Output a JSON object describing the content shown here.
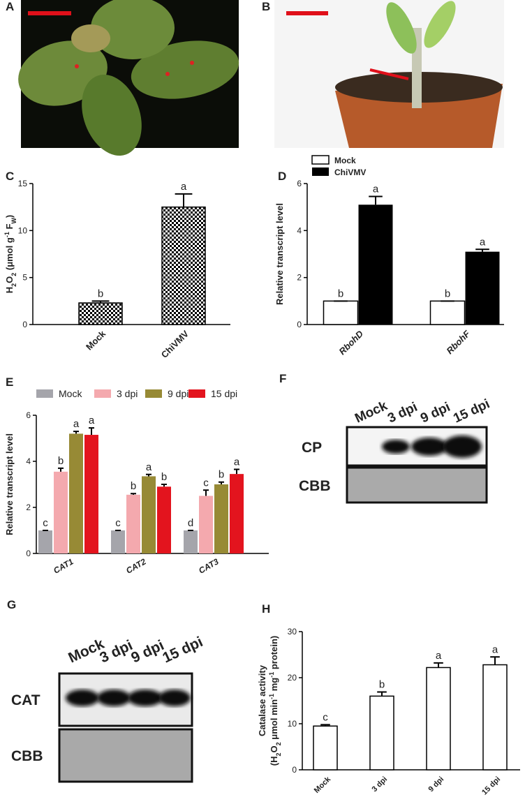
{
  "chart_data": [
    {
      "type": "bar",
      "panel": "C",
      "ylabel": [
        [
          [
            "H",
            ""
          ],
          [
            "2",
            "sub"
          ],
          [
            "O",
            ""
          ],
          [
            "2",
            "sub"
          ],
          [
            " (μmol g",
            ""
          ],
          [
            "-1",
            "sup"
          ],
          [
            " F",
            ""
          ],
          [
            "W",
            "sub"
          ],
          [
            ")",
            ""
          ]
        ]
      ],
      "categories": [
        "Mock",
        "ChiVMV"
      ],
      "values": [
        2.3,
        12.5
      ],
      "errors": [
        0.2,
        1.4
      ],
      "annotations": [
        "b",
        "a"
      ],
      "color": "#000000",
      "pattern": "checkered",
      "ylim": [
        0,
        15
      ],
      "yticks": [
        0,
        5,
        10,
        15
      ]
    },
    {
      "type": "bar",
      "panel": "D",
      "ylabel": [
        [
          [
            "Relative transcript level",
            ""
          ]
        ]
      ],
      "category_italic": true,
      "categories": [
        "RbohD",
        "RbohF"
      ],
      "series": [
        {
          "name": "Mock",
          "color": "#ffffff",
          "values": [
            1,
            1
          ],
          "errors": [
            0,
            0
          ],
          "annotations": [
            "b",
            "b"
          ]
        },
        {
          "name": "ChiVMV",
          "color": "#000000",
          "values": [
            5.1,
            3.1
          ],
          "errors": [
            0.35,
            0.1
          ],
          "annotations": [
            "a",
            "a"
          ]
        }
      ],
      "ylim": [
        0,
        6
      ],
      "yticks": [
        0,
        2,
        4,
        6
      ]
    },
    {
      "type": "bar",
      "panel": "E",
      "ylabel": [
        [
          [
            "Relative transcript level",
            ""
          ]
        ]
      ],
      "category_italic": true,
      "categories": [
        "CAT1",
        "CAT2",
        "CAT3"
      ],
      "series": [
        {
          "name": "Mock",
          "color": "#a5a5ab",
          "values": [
            1,
            1,
            1
          ],
          "errors": [
            0,
            0,
            0
          ],
          "annotations": [
            "c",
            "c",
            "d"
          ]
        },
        {
          "name": "3 dpi",
          "color": "#f4a9ae",
          "values": [
            3.55,
            2.55,
            2.5
          ],
          "errors": [
            0.15,
            0.05,
            0.25
          ],
          "annotations": [
            "b",
            "b",
            "c"
          ]
        },
        {
          "name": "9 dpi",
          "color": "#978a35",
          "values": [
            5.2,
            3.35,
            3.0
          ],
          "errors": [
            0.1,
            0.08,
            0.1
          ],
          "annotations": [
            "a",
            "a",
            "b"
          ]
        },
        {
          "name": "15 dpi",
          "color": "#e3141e",
          "values": [
            5.15,
            2.9,
            3.45
          ],
          "errors": [
            0.3,
            0.1,
            0.2
          ],
          "annotations": [
            "a",
            "b",
            "a"
          ]
        }
      ],
      "ylim": [
        0,
        6
      ],
      "yticks": [
        0,
        2,
        4,
        6
      ]
    },
    {
      "type": "bar",
      "panel": "H",
      "ylabel": [
        [
          [
            "Catalase activity",
            ""
          ]
        ],
        [
          [
            "(H",
            ""
          ],
          [
            "2",
            "sub"
          ],
          [
            "O",
            ""
          ],
          [
            "2",
            "sub"
          ],
          [
            " μmol min",
            ""
          ],
          [
            "-1",
            "sup"
          ],
          [
            " mg",
            ""
          ],
          [
            "-1",
            "sup"
          ],
          [
            " protein)",
            ""
          ]
        ]
      ],
      "categories": [
        "Mock",
        "3 dpi",
        "9 dpi",
        "15 dpi"
      ],
      "values": [
        9.5,
        16,
        22.2,
        22.8
      ],
      "errors": [
        0.3,
        0.9,
        1,
        1.7
      ],
      "annotations": [
        "c",
        "b",
        "a",
        "a"
      ],
      "color": "#ffffff",
      "ylim": [
        0,
        30
      ],
      "yticks": [
        0,
        10,
        20,
        30
      ]
    }
  ],
  "photos": [
    {
      "panel": "A"
    },
    {
      "panel": "B"
    }
  ],
  "blots": [
    {
      "panel": "F",
      "lanes": [
        "Mock",
        "3 dpi",
        "9 dpi",
        "15 dpi"
      ],
      "rows": [
        "CP",
        "CBB"
      ]
    },
    {
      "panel": "G",
      "lanes": [
        "Mock",
        "3 dpi",
        "9 dpi",
        "15 dpi"
      ],
      "rows": [
        "CAT",
        "CBB"
      ]
    }
  ]
}
